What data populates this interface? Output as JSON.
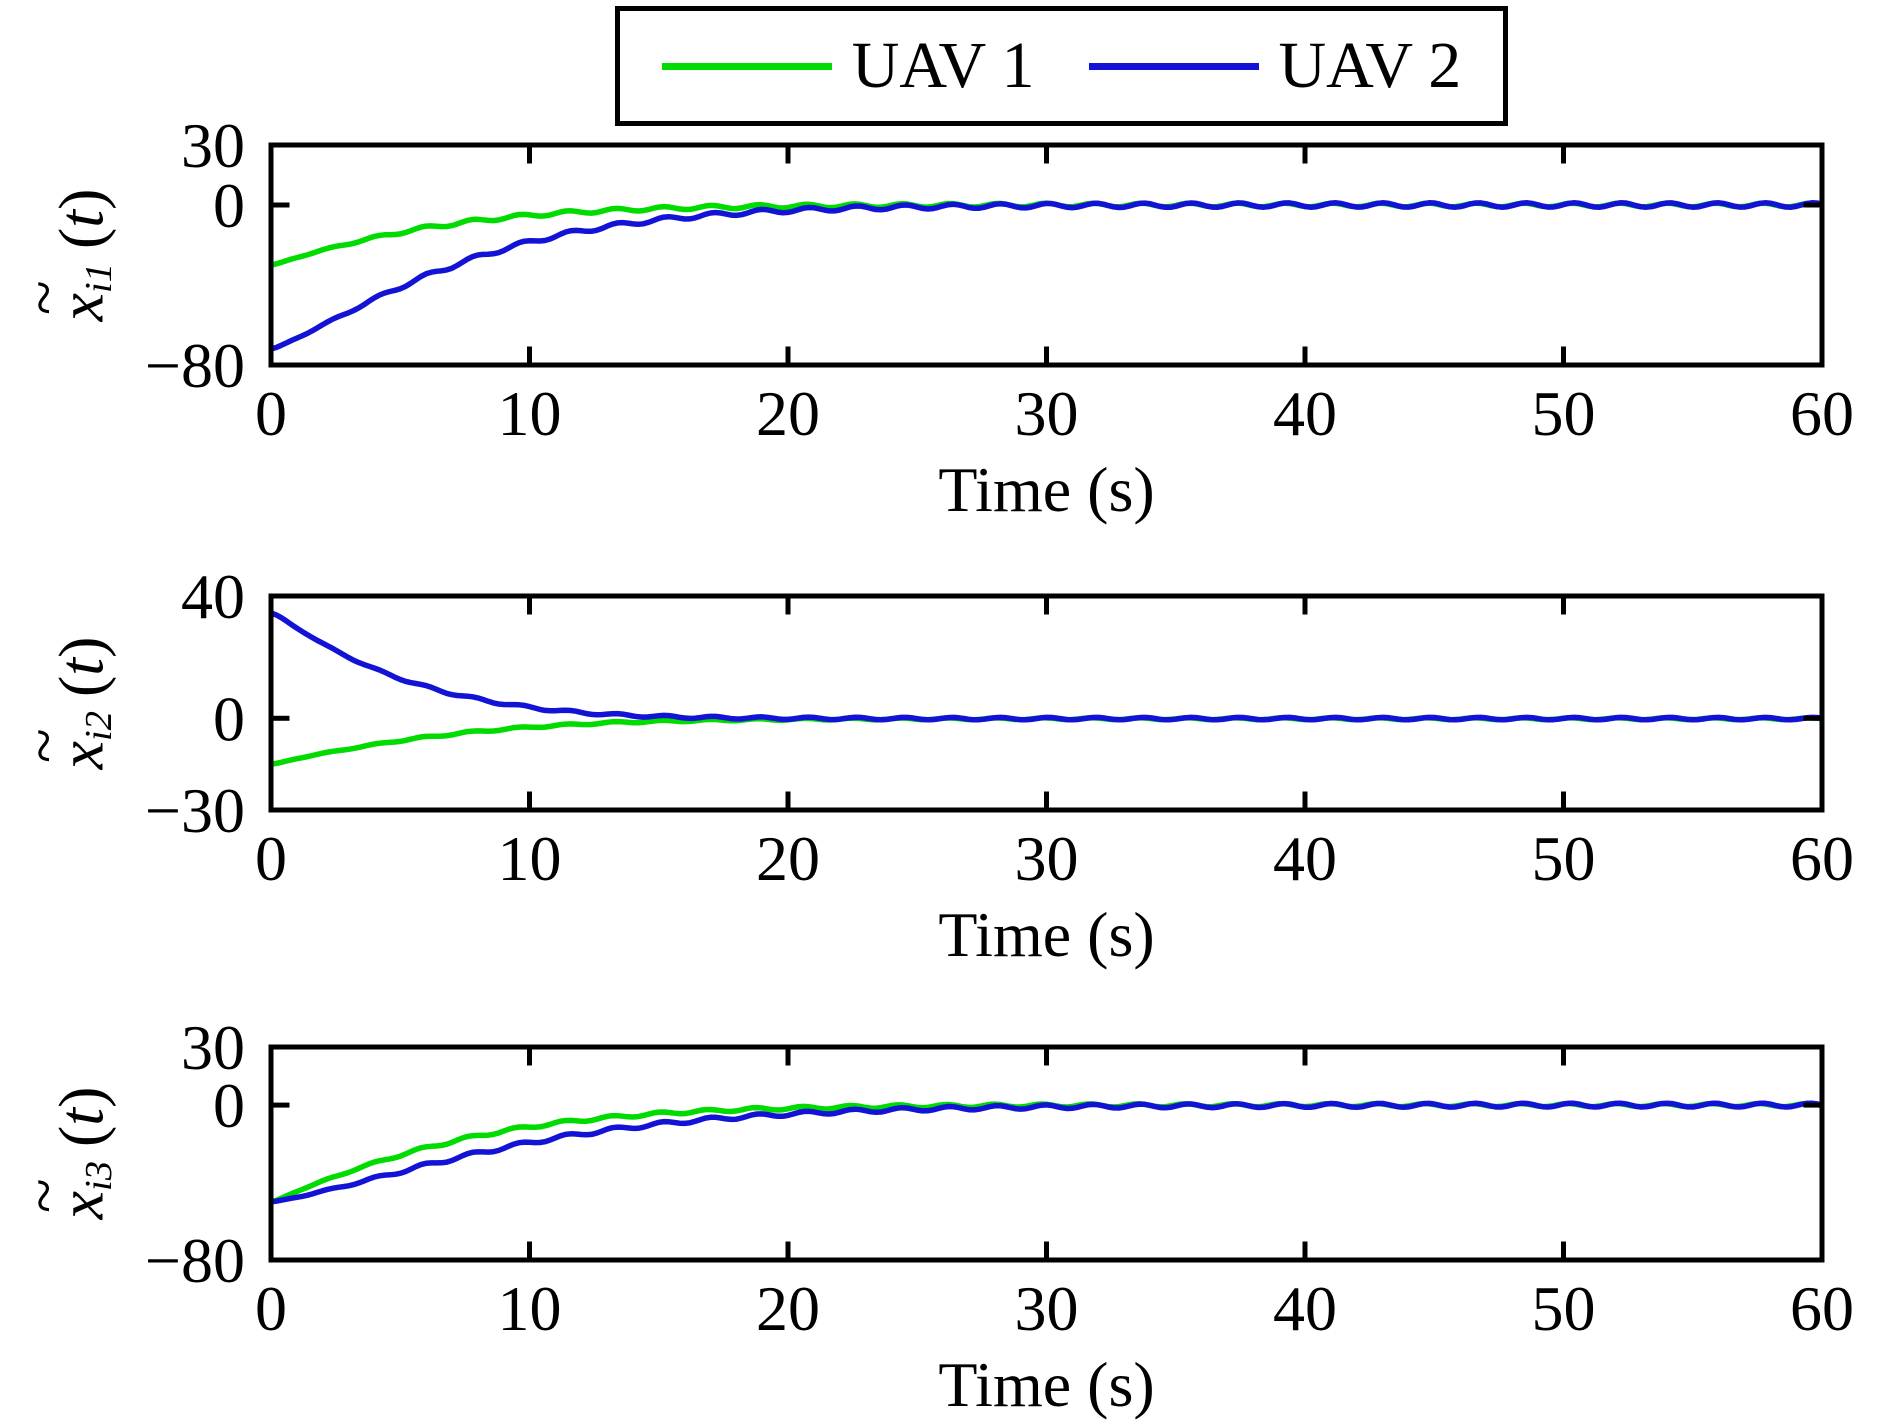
{
  "glyphs": {
    "tilde": "~",
    "lparen": "(",
    "rparen": ")"
  },
  "legend": {
    "position": "top-center",
    "items": [
      {
        "label": "UAV 1",
        "color": "#00dc00"
      },
      {
        "label": "UAV 2",
        "color": "#1313d6"
      }
    ]
  },
  "chart_data": [
    {
      "type": "line",
      "title": "",
      "xlabel": "Time (s)",
      "ylabel": "x~_i1 (t)",
      "ylabel_parts": {
        "base": "x",
        "sub": "i1",
        "arg": "t"
      },
      "xlim": [
        0,
        60
      ],
      "ylim": [
        -80,
        30
      ],
      "xticks": [
        0,
        10,
        20,
        30,
        40,
        50,
        60
      ],
      "xtick_labels": [
        "0",
        "10",
        "20",
        "30",
        "40",
        "50",
        "60"
      ],
      "yticks": [
        30,
        0,
        -80
      ],
      "ytick_labels": [
        "30",
        "0",
        "−80"
      ],
      "grid": false,
      "legend_position": "top-center",
      "series": [
        {
          "name": "UAV 1",
          "color": "#00dc00",
          "ripple": {
            "amplitude": 0.9,
            "period": 1.85,
            "phase": 0.3
          },
          "points": [
            [
              0,
              -30
            ],
            [
              1,
              -26.2
            ],
            [
              2,
              -22.6
            ],
            [
              3,
              -19.3
            ],
            [
              4,
              -16.3
            ],
            [
              5,
              -13.7
            ],
            [
              6,
              -11.4
            ],
            [
              7,
              -9.5
            ],
            [
              8,
              -7.8
            ],
            [
              9,
              -6.4
            ],
            [
              10,
              -5.2
            ],
            [
              11,
              -4.2
            ],
            [
              12,
              -3.4
            ],
            [
              13,
              -2.8
            ],
            [
              14,
              -2.2
            ],
            [
              15,
              -1.8
            ],
            [
              16,
              -1.4
            ],
            [
              17,
              -1.1
            ],
            [
              18,
              -0.9
            ],
            [
              19,
              -0.7
            ],
            [
              20,
              -0.6
            ],
            [
              22,
              -0.4
            ],
            [
              24,
              -0.25
            ],
            [
              26,
              -0.15
            ],
            [
              28,
              -0.1
            ],
            [
              30,
              0
            ],
            [
              35,
              0
            ],
            [
              40,
              0
            ],
            [
              45,
              0
            ],
            [
              50,
              0
            ],
            [
              55,
              0
            ],
            [
              60,
              0
            ]
          ]
        },
        {
          "name": "UAV 2",
          "color": "#1313d6",
          "ripple": {
            "amplitude": 1.1,
            "period": 1.85,
            "phase": 0.0
          },
          "points": [
            [
              0,
              -72
            ],
            [
              1,
              -66.5
            ],
            [
              2,
              -60
            ],
            [
              3,
              -53.5
            ],
            [
              4,
              -47
            ],
            [
              5,
              -41
            ],
            [
              6,
              -35.5
            ],
            [
              7,
              -30.5
            ],
            [
              8,
              -26
            ],
            [
              9,
              -22
            ],
            [
              10,
              -18.5
            ],
            [
              11,
              -15.5
            ],
            [
              12,
              -13
            ],
            [
              13,
              -10.8
            ],
            [
              14,
              -9
            ],
            [
              15,
              -7.4
            ],
            [
              16,
              -6.1
            ],
            [
              17,
              -5
            ],
            [
              18,
              -4.1
            ],
            [
              19,
              -3.3
            ],
            [
              20,
              -2.7
            ],
            [
              22,
              -1.8
            ],
            [
              24,
              -1.2
            ],
            [
              26,
              -0.8
            ],
            [
              28,
              -0.5
            ],
            [
              30,
              -0.3
            ],
            [
              32,
              -0.2
            ],
            [
              35,
              -0.1
            ],
            [
              40,
              0
            ],
            [
              45,
              0
            ],
            [
              50,
              0
            ],
            [
              55,
              0
            ],
            [
              60,
              0
            ]
          ]
        }
      ]
    },
    {
      "type": "line",
      "title": "",
      "xlabel": "Time (s)",
      "ylabel": "x~_i2 (t)",
      "ylabel_parts": {
        "base": "x",
        "sub": "i2",
        "arg": "t"
      },
      "xlim": [
        0,
        60
      ],
      "ylim": [
        -30,
        40
      ],
      "xticks": [
        0,
        10,
        20,
        30,
        40,
        50,
        60
      ],
      "xtick_labels": [
        "0",
        "10",
        "20",
        "30",
        "40",
        "50",
        "60"
      ],
      "yticks": [
        40,
        0,
        -30
      ],
      "ytick_labels": [
        "40",
        "0",
        "−30"
      ],
      "grid": false,
      "legend_position": "top-center",
      "series": [
        {
          "name": "UAV 1",
          "color": "#00dc00",
          "ripple": {
            "amplitude": 0.3,
            "period": 1.85,
            "phase": 0.5
          },
          "points": [
            [
              0,
              -15
            ],
            [
              1,
              -13.2
            ],
            [
              2,
              -11.5
            ],
            [
              3,
              -10
            ],
            [
              4,
              -8.6
            ],
            [
              5,
              -7.3
            ],
            [
              6,
              -6.2
            ],
            [
              7,
              -5.2
            ],
            [
              8,
              -4.3
            ],
            [
              9,
              -3.6
            ],
            [
              10,
              -2.9
            ],
            [
              11,
              -2.4
            ],
            [
              12,
              -1.9
            ],
            [
              13,
              -1.5
            ],
            [
              14,
              -1.2
            ],
            [
              15,
              -1
            ],
            [
              16,
              -0.8
            ],
            [
              17,
              -0.65
            ],
            [
              18,
              -0.5
            ],
            [
              20,
              -0.35
            ],
            [
              22,
              -0.25
            ],
            [
              25,
              -0.2
            ],
            [
              30,
              -0.15
            ],
            [
              35,
              -0.15
            ],
            [
              40,
              -0.15
            ],
            [
              45,
              -0.15
            ],
            [
              50,
              -0.15
            ],
            [
              55,
              -0.15
            ],
            [
              60,
              -0.15
            ]
          ]
        },
        {
          "name": "UAV 2",
          "color": "#1313d6",
          "ripple": {
            "amplitude": 0.4,
            "period": 1.85,
            "phase": 0.0
          },
          "points": [
            [
              0,
              34.5
            ],
            [
              1,
              29.5
            ],
            [
              2,
              24.5
            ],
            [
              3,
              20
            ],
            [
              4,
              16.2
            ],
            [
              5,
              13
            ],
            [
              6,
              10.3
            ],
            [
              7,
              8.1
            ],
            [
              8,
              6.3
            ],
            [
              9,
              4.8
            ],
            [
              10,
              3.6
            ],
            [
              11,
              2.6
            ],
            [
              12,
              1.9
            ],
            [
              13,
              1.3
            ],
            [
              14,
              0.9
            ],
            [
              15,
              0.6
            ],
            [
              16,
              0.4
            ],
            [
              17,
              0.25
            ],
            [
              18,
              0.15
            ],
            [
              20,
              0
            ],
            [
              25,
              -0.1
            ],
            [
              30,
              -0.1
            ],
            [
              35,
              -0.1
            ],
            [
              40,
              -0.1
            ],
            [
              45,
              -0.1
            ],
            [
              50,
              -0.1
            ],
            [
              55,
              -0.1
            ],
            [
              60,
              -0.1
            ]
          ]
        }
      ]
    },
    {
      "type": "line",
      "title": "",
      "xlabel": "Time (s)",
      "ylabel": "x~_i3 (t)",
      "ylabel_parts": {
        "base": "x",
        "sub": "i3",
        "arg": "t"
      },
      "xlim": [
        0,
        60
      ],
      "ylim": [
        -80,
        30
      ],
      "xticks": [
        0,
        10,
        20,
        30,
        40,
        50,
        60
      ],
      "xtick_labels": [
        "0",
        "10",
        "20",
        "30",
        "40",
        "50",
        "60"
      ],
      "yticks": [
        30,
        0,
        -80
      ],
      "ytick_labels": [
        "30",
        "0",
        "−80"
      ],
      "grid": false,
      "legend_position": "top-center",
      "series": [
        {
          "name": "UAV 1",
          "color": "#00dc00",
          "ripple": {
            "amplitude": 0.8,
            "period": 1.85,
            "phase": 0.8
          },
          "points": [
            [
              0,
              -50
            ],
            [
              1,
              -44.5
            ],
            [
              2,
              -39.3
            ],
            [
              3,
              -34.4
            ],
            [
              4,
              -29.9
            ],
            [
              5,
              -25.8
            ],
            [
              6,
              -22.1
            ],
            [
              7,
              -18.8
            ],
            [
              8,
              -15.9
            ],
            [
              9,
              -13.4
            ],
            [
              10,
              -11.2
            ],
            [
              11,
              -9.4
            ],
            [
              12,
              -7.8
            ],
            [
              13,
              -6.5
            ],
            [
              14,
              -5.4
            ],
            [
              15,
              -4.4
            ],
            [
              16,
              -3.6
            ],
            [
              17,
              -3
            ],
            [
              18,
              -2.4
            ],
            [
              19,
              -2
            ],
            [
              20,
              -1.6
            ],
            [
              22,
              -1.1
            ],
            [
              24,
              -0.7
            ],
            [
              26,
              -0.5
            ],
            [
              28,
              -0.3
            ],
            [
              30,
              -0.2
            ],
            [
              35,
              -0.1
            ],
            [
              40,
              0
            ],
            [
              45,
              0
            ],
            [
              50,
              0
            ],
            [
              55,
              0
            ],
            [
              60,
              0
            ]
          ]
        },
        {
          "name": "UAV 2",
          "color": "#1313d6",
          "ripple": {
            "amplitude": 1.0,
            "period": 1.85,
            "phase": 0.4
          },
          "points": [
            [
              0,
              -50
            ],
            [
              1,
              -47.5
            ],
            [
              2,
              -44.5
            ],
            [
              3,
              -41.2
            ],
            [
              4,
              -37.8
            ],
            [
              5,
              -34.4
            ],
            [
              6,
              -31
            ],
            [
              7,
              -27.8
            ],
            [
              8,
              -24.8
            ],
            [
              9,
              -22
            ],
            [
              10,
              -19.4
            ],
            [
              11,
              -17
            ],
            [
              12,
              -14.9
            ],
            [
              13,
              -13
            ],
            [
              14,
              -11.3
            ],
            [
              15,
              -9.8
            ],
            [
              16,
              -8.5
            ],
            [
              17,
              -7.3
            ],
            [
              18,
              -6.3
            ],
            [
              19,
              -5.4
            ],
            [
              20,
              -4.6
            ],
            [
              22,
              -3.4
            ],
            [
              24,
              -2.5
            ],
            [
              26,
              -1.8
            ],
            [
              28,
              -1.3
            ],
            [
              30,
              -0.9
            ],
            [
              32,
              -0.6
            ],
            [
              35,
              -0.4
            ],
            [
              40,
              -0.2
            ],
            [
              45,
              -0.1
            ],
            [
              50,
              0
            ],
            [
              55,
              0
            ],
            [
              60,
              0
            ]
          ]
        }
      ]
    }
  ]
}
